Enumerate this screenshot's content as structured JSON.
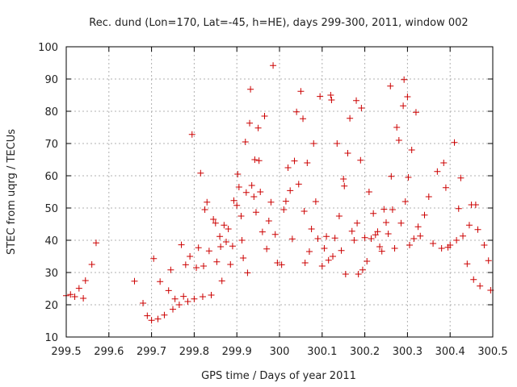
{
  "chart_data": {
    "type": "scatter",
    "title": "Rec. dund (Lon=170, Lat=-45, h=HE), days 299-300, 2011, window 002",
    "xlabel": "GPS time / Days of year 2011",
    "ylabel": "STEC from uqrg / TECUs",
    "xlim": [
      299.5,
      300.5
    ],
    "ylim": [
      10,
      100
    ],
    "xticks": [
      "299.5",
      "299.6",
      "299.7",
      "299.8",
      "299.9",
      "300",
      "300.1",
      "300.2",
      "300.3",
      "300.4",
      "300.5"
    ],
    "yticks": [
      "10",
      "20",
      "30",
      "40",
      "50",
      "60",
      "70",
      "80",
      "90",
      "100"
    ],
    "grid": true,
    "marker": "+",
    "color": "#cc0000",
    "points": [
      [
        299.5,
        22.8
      ],
      [
        299.51,
        23.2
      ],
      [
        299.52,
        22.5
      ],
      [
        299.53,
        25.1
      ],
      [
        299.54,
        22.0
      ],
      [
        299.545,
        27.5
      ],
      [
        299.56,
        32.5
      ],
      [
        299.57,
        39.2
      ],
      [
        299.66,
        27.3
      ],
      [
        299.68,
        20.5
      ],
      [
        299.69,
        16.6
      ],
      [
        299.7,
        15.2
      ],
      [
        299.705,
        34.3
      ],
      [
        299.715,
        15.6
      ],
      [
        299.72,
        27.2
      ],
      [
        299.73,
        16.8
      ],
      [
        299.74,
        24.4
      ],
      [
        299.745,
        30.8
      ],
      [
        299.75,
        18.6
      ],
      [
        299.755,
        21.8
      ],
      [
        299.765,
        20.0
      ],
      [
        299.77,
        38.6
      ],
      [
        299.775,
        22.6
      ],
      [
        299.78,
        32.4
      ],
      [
        299.785,
        21.0
      ],
      [
        299.79,
        35.0
      ],
      [
        299.795,
        72.8
      ],
      [
        299.8,
        21.8
      ],
      [
        299.805,
        31.5
      ],
      [
        299.81,
        37.7
      ],
      [
        299.815,
        60.8
      ],
      [
        299.82,
        22.5
      ],
      [
        299.822,
        32.0
      ],
      [
        299.825,
        49.5
      ],
      [
        299.83,
        51.8
      ],
      [
        299.835,
        36.7
      ],
      [
        299.84,
        23.0
      ],
      [
        299.845,
        46.5
      ],
      [
        299.85,
        45.3
      ],
      [
        299.853,
        33.3
      ],
      [
        299.86,
        41.2
      ],
      [
        299.862,
        38.0
      ],
      [
        299.865,
        27.4
      ],
      [
        299.87,
        44.7
      ],
      [
        299.875,
        39.5
      ],
      [
        299.88,
        43.5
      ],
      [
        299.885,
        32.5
      ],
      [
        299.89,
        38.2
      ],
      [
        299.893,
        52.3
      ],
      [
        299.9,
        50.8
      ],
      [
        299.902,
        60.5
      ],
      [
        299.905,
        56.5
      ],
      [
        299.91,
        47.5
      ],
      [
        299.912,
        40.0
      ],
      [
        299.915,
        34.5
      ],
      [
        299.92,
        70.5
      ],
      [
        299.922,
        54.8
      ],
      [
        299.925,
        29.9
      ],
      [
        299.93,
        76.3
      ],
      [
        299.932,
        86.8
      ],
      [
        299.935,
        57.0
      ],
      [
        299.94,
        53.5
      ],
      [
        299.942,
        65.0
      ],
      [
        299.945,
        48.7
      ],
      [
        299.95,
        74.8
      ],
      [
        299.952,
        64.7
      ],
      [
        299.955,
        55.0
      ],
      [
        299.96,
        42.6
      ],
      [
        299.965,
        78.5
      ],
      [
        299.97,
        37.3
      ],
      [
        299.975,
        46.0
      ],
      [
        299.98,
        51.8
      ],
      [
        299.985,
        94.2
      ],
      [
        299.99,
        41.8
      ],
      [
        299.995,
        33.0
      ],
      [
        300.005,
        32.4
      ],
      [
        300.01,
        49.5
      ],
      [
        300.015,
        52.1
      ],
      [
        300.02,
        62.5
      ],
      [
        300.025,
        55.4
      ],
      [
        300.03,
        40.4
      ],
      [
        300.035,
        64.6
      ],
      [
        300.04,
        79.8
      ],
      [
        300.045,
        57.4
      ],
      [
        300.05,
        86.2
      ],
      [
        300.055,
        77.7
      ],
      [
        300.058,
        49.0
      ],
      [
        300.06,
        33.0
      ],
      [
        300.065,
        64.0
      ],
      [
        300.07,
        36.5
      ],
      [
        300.075,
        43.5
      ],
      [
        300.08,
        70.0
      ],
      [
        300.085,
        52.0
      ],
      [
        300.09,
        40.5
      ],
      [
        300.095,
        84.6
      ],
      [
        300.1,
        32.0
      ],
      [
        300.105,
        37.5
      ],
      [
        300.11,
        41.2
      ],
      [
        300.115,
        33.8
      ],
      [
        300.12,
        85.0
      ],
      [
        300.122,
        83.5
      ],
      [
        300.125,
        35.0
      ],
      [
        300.13,
        40.7
      ],
      [
        300.135,
        70.0
      ],
      [
        300.14,
        47.5
      ],
      [
        300.145,
        36.8
      ],
      [
        300.15,
        59.0
      ],
      [
        300.152,
        56.8
      ],
      [
        300.155,
        29.5
      ],
      [
        300.16,
        67.0
      ],
      [
        300.165,
        77.8
      ],
      [
        300.17,
        42.8
      ],
      [
        300.175,
        40.0
      ],
      [
        300.18,
        83.3
      ],
      [
        300.182,
        45.3
      ],
      [
        300.185,
        29.5
      ],
      [
        300.19,
        64.8
      ],
      [
        300.192,
        81.0
      ],
      [
        300.195,
        30.8
      ],
      [
        300.2,
        40.8
      ],
      [
        300.205,
        33.5
      ],
      [
        300.21,
        55.0
      ],
      [
        300.215,
        40.5
      ],
      [
        300.22,
        48.3
      ],
      [
        300.225,
        41.7
      ],
      [
        300.23,
        42.7
      ],
      [
        300.235,
        38.0
      ],
      [
        300.24,
        36.6
      ],
      [
        300.245,
        49.6
      ],
      [
        300.25,
        45.5
      ],
      [
        300.255,
        42.0
      ],
      [
        300.26,
        87.8
      ],
      [
        300.262,
        59.8
      ],
      [
        300.265,
        49.5
      ],
      [
        300.27,
        37.5
      ],
      [
        300.275,
        75.0
      ],
      [
        300.28,
        71.0
      ],
      [
        300.285,
        45.3
      ],
      [
        300.29,
        81.7
      ],
      [
        300.292,
        89.8
      ],
      [
        300.295,
        52.0
      ],
      [
        300.3,
        84.5
      ],
      [
        300.302,
        59.5
      ],
      [
        300.305,
        38.5
      ],
      [
        300.31,
        68.0
      ],
      [
        300.315,
        40.5
      ],
      [
        300.32,
        79.7
      ],
      [
        300.325,
        44.2
      ],
      [
        300.33,
        41.3
      ],
      [
        300.34,
        47.8
      ],
      [
        300.35,
        53.5
      ],
      [
        300.36,
        39.0
      ],
      [
        300.37,
        61.3
      ],
      [
        300.38,
        37.5
      ],
      [
        300.385,
        64.0
      ],
      [
        300.39,
        56.3
      ],
      [
        300.395,
        37.8
      ],
      [
        300.4,
        38.5
      ],
      [
        300.41,
        70.3
      ],
      [
        300.415,
        40.0
      ],
      [
        300.42,
        49.8
      ],
      [
        300.425,
        59.3
      ],
      [
        300.43,
        41.3
      ],
      [
        300.44,
        32.7
      ],
      [
        300.445,
        44.7
      ],
      [
        300.45,
        51.0
      ],
      [
        300.455,
        27.8
      ],
      [
        300.46,
        51.0
      ],
      [
        300.465,
        43.3
      ],
      [
        300.47,
        25.8
      ],
      [
        300.48,
        38.5
      ],
      [
        300.49,
        33.7
      ],
      [
        300.495,
        24.5
      ]
    ]
  }
}
